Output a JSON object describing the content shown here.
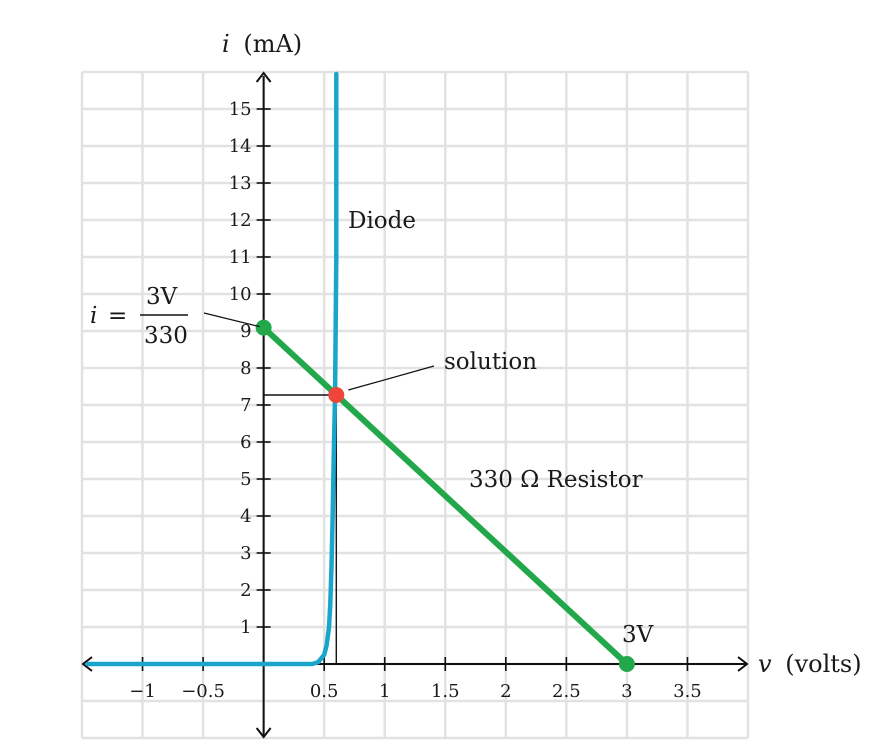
{
  "chart_data": {
    "type": "line",
    "xlabel_var": "v",
    "xlabel_unit": "(volts)",
    "ylabel_var": "i",
    "ylabel_unit": "(mA)",
    "xlim": [
      -1.5,
      4.0
    ],
    "ylim": [
      -2.0,
      16.0
    ],
    "x_ticks": [
      {
        "value": -1,
        "label": "−1"
      },
      {
        "value": -0.5,
        "label": "−0.5"
      },
      {
        "value": 0.5,
        "label": "0.5"
      },
      {
        "value": 1,
        "label": "1"
      },
      {
        "value": 1.5,
        "label": "1.5"
      },
      {
        "value": 2,
        "label": "2"
      },
      {
        "value": 2.5,
        "label": "2.5"
      },
      {
        "value": 3,
        "label": "3"
      },
      {
        "value": 3.5,
        "label": "3.5"
      }
    ],
    "y_ticks": [
      {
        "value": 1,
        "label": "1"
      },
      {
        "value": 2,
        "label": "2"
      },
      {
        "value": 3,
        "label": "3"
      },
      {
        "value": 4,
        "label": "4"
      },
      {
        "value": 5,
        "label": "5"
      },
      {
        "value": 6,
        "label": "6"
      },
      {
        "value": 7,
        "label": "7"
      },
      {
        "value": 8,
        "label": "8"
      },
      {
        "value": 9,
        "label": "9"
      },
      {
        "value": 10,
        "label": "10"
      },
      {
        "value": 11,
        "label": "11"
      },
      {
        "value": 12,
        "label": "12"
      },
      {
        "value": 13,
        "label": "13"
      },
      {
        "value": 14,
        "label": "14"
      },
      {
        "value": 15,
        "label": "15"
      }
    ],
    "grid": true,
    "series": [
      {
        "name": "Diode",
        "color": "#1aa6cc",
        "x": [
          -1.5,
          0.4,
          0.45,
          0.5,
          0.52,
          0.54,
          0.55,
          0.56,
          0.57,
          0.58,
          0.59,
          0.6,
          0.6
        ],
        "y": [
          0,
          0,
          0.05,
          0.25,
          0.5,
          1.0,
          1.6,
          2.6,
          4.0,
          5.8,
          7.3,
          11.0,
          16.0
        ]
      },
      {
        "name": "330 Ω Resistor",
        "color": "#22a84b",
        "x": [
          0,
          3
        ],
        "y": [
          9.0909,
          0
        ]
      }
    ],
    "points": [
      {
        "name": "y-intercept",
        "x": 0,
        "y": 9.0909,
        "color": "#22a84b"
      },
      {
        "name": "solution",
        "x": 0.6,
        "y": 7.27,
        "color": "#f0453a"
      },
      {
        "name": "3V",
        "x": 3,
        "y": 0,
        "color": "#22a84b"
      }
    ],
    "annotations": {
      "diode_label": "Diode",
      "resistor_label": "330 Ω Resistor",
      "solution_label": "solution",
      "source_label": "3V",
      "eq_lhs": "i",
      "eq_equals": "=",
      "eq_numerator": "3V",
      "eq_denominator": "330"
    }
  }
}
